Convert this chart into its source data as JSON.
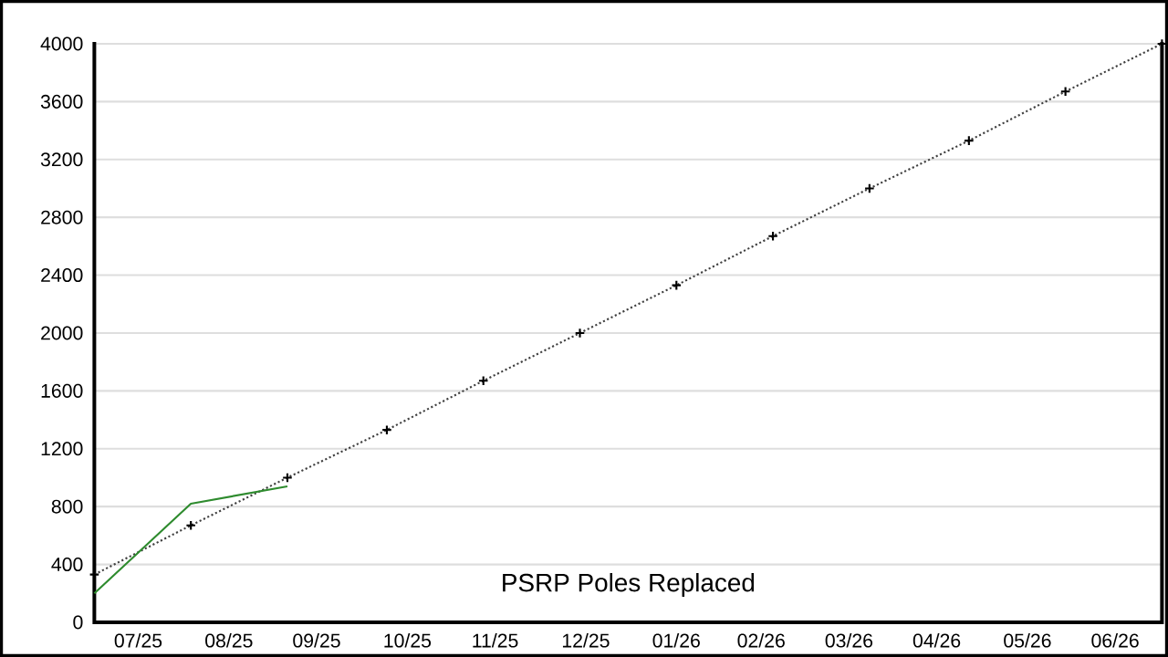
{
  "chart_data": {
    "type": "line",
    "title": "PSRP Poles Replaced",
    "xlim": [
      "2025-07-01",
      "2026-07-01"
    ],
    "xticks": [
      {
        "value": "2025-07-16",
        "label": "07/25"
      },
      {
        "value": "2025-08-16",
        "label": "08/25"
      },
      {
        "value": "2025-09-15",
        "label": "09/25"
      },
      {
        "value": "2025-10-16",
        "label": "10/25"
      },
      {
        "value": "2025-11-15",
        "label": "11/25"
      },
      {
        "value": "2025-12-16",
        "label": "12/25"
      },
      {
        "value": "2026-01-16",
        "label": "01/26"
      },
      {
        "value": "2026-02-14",
        "label": "02/26"
      },
      {
        "value": "2026-03-16",
        "label": "03/26"
      },
      {
        "value": "2026-04-15",
        "label": "04/26"
      },
      {
        "value": "2026-05-16",
        "label": "05/26"
      },
      {
        "value": "2026-06-15",
        "label": "06/26"
      }
    ],
    "ylim": [
      0,
      4000
    ],
    "yticks": [
      0,
      400,
      800,
      1200,
      1600,
      2000,
      2400,
      2800,
      3200,
      3600,
      4000
    ],
    "grid": "y",
    "series": [
      {
        "color": "#404040",
        "marker": "cross",
        "line_style": "dotted",
        "x": [
          "2025-07-01",
          "2025-08-03",
          "2025-09-05",
          "2025-10-09",
          "2025-11-11",
          "2025-12-14",
          "2026-01-16",
          "2026-02-18",
          "2026-03-23",
          "2026-04-26",
          "2026-05-29",
          "2026-07-01"
        ],
        "values": [
          330,
          670,
          1000,
          1330,
          1670,
          2000,
          2330,
          2670,
          3000,
          3330,
          3670,
          4000
        ]
      },
      {
        "color": "#2e8b2e",
        "marker": "none",
        "line_style": "solid",
        "x": [
          "2025-07-01",
          "2025-08-03",
          "2025-09-05"
        ],
        "values": [
          200,
          820,
          940
        ]
      }
    ]
  }
}
